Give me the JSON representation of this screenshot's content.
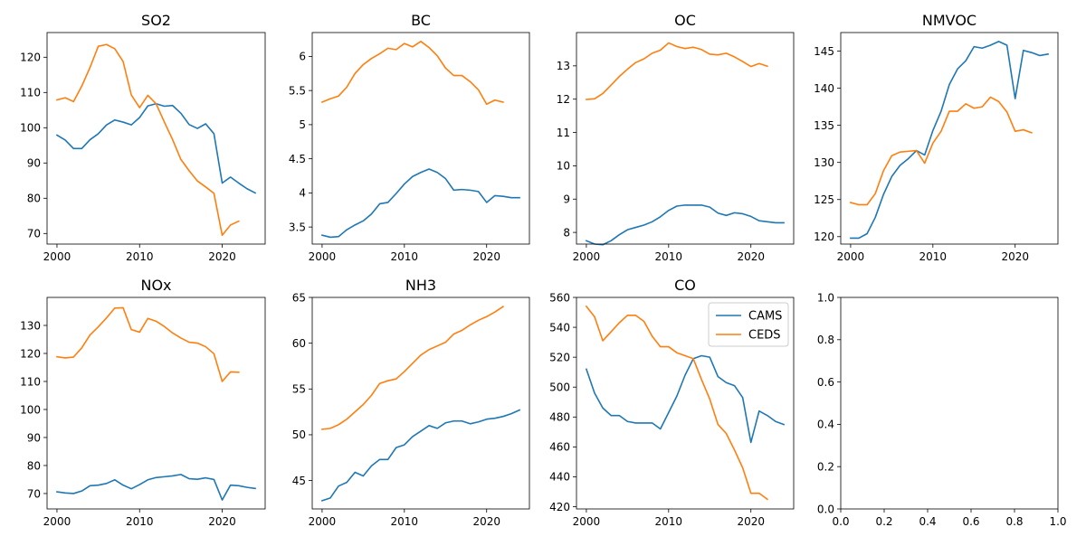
{
  "colors": {
    "cams": "#1f77b4",
    "ceds": "#ff7f0e"
  },
  "chart_data": [
    {
      "type": "line",
      "title": "SO2",
      "xlim": [
        1998.8,
        2025.2
      ],
      "ylim": [
        67,
        127
      ],
      "xticks": [
        2000,
        2010,
        2020
      ],
      "yticks": [
        70,
        80,
        90,
        100,
        110,
        120
      ],
      "series": [
        {
          "name": "CAMS",
          "x": [
            2000,
            2001,
            2002,
            2003,
            2004,
            2005,
            2006,
            2007,
            2008,
            2009,
            2010,
            2011,
            2012,
            2013,
            2014,
            2015,
            2016,
            2017,
            2018,
            2019,
            2020,
            2021,
            2022,
            2023,
            2024
          ],
          "values": [
            97.9,
            96.5,
            94.1,
            94.1,
            96.6,
            98.3,
            100.8,
            102.2,
            101.6,
            100.8,
            102.9,
            106.2,
            106.8,
            106.1,
            106.3,
            104.1,
            100.9,
            99.8,
            101.1,
            98.3,
            84.3,
            86.0,
            84.3,
            82.7,
            81.5
          ]
        },
        {
          "name": "CEDS",
          "x": [
            2000,
            2001,
            2002,
            2003,
            2004,
            2005,
            2006,
            2007,
            2008,
            2009,
            2010,
            2011,
            2012,
            2013,
            2014,
            2015,
            2016,
            2017,
            2018,
            2019,
            2020,
            2021,
            2022
          ],
          "values": [
            107.9,
            108.5,
            107.4,
            111.8,
            117.1,
            123.1,
            123.6,
            122.4,
            118.8,
            109.3,
            105.7,
            109.2,
            106.8,
            101.6,
            96.6,
            91.0,
            87.8,
            84.9,
            83.2,
            81.4,
            69.5,
            72.4,
            73.5
          ]
        }
      ]
    },
    {
      "type": "line",
      "title": "BC",
      "xlim": [
        1998.8,
        2025.2
      ],
      "ylim": [
        3.25,
        6.35
      ],
      "xticks": [
        2000,
        2010,
        2020
      ],
      "yticks": [
        3.5,
        4.0,
        4.5,
        5.0,
        5.5,
        6.0
      ],
      "series": [
        {
          "name": "CAMS",
          "x": [
            2000,
            2001,
            2002,
            2003,
            2004,
            2005,
            2006,
            2007,
            2008,
            2009,
            2010,
            2011,
            2012,
            2013,
            2014,
            2015,
            2016,
            2017,
            2018,
            2019,
            2020,
            2021,
            2022,
            2023,
            2024
          ],
          "values": [
            3.38,
            3.35,
            3.36,
            3.46,
            3.53,
            3.59,
            3.69,
            3.84,
            3.86,
            3.99,
            4.13,
            4.24,
            4.3,
            4.35,
            4.3,
            4.21,
            4.04,
            4.05,
            4.04,
            4.02,
            3.86,
            3.96,
            3.95,
            3.93,
            3.93
          ]
        },
        {
          "name": "CEDS",
          "x": [
            2000,
            2001,
            2002,
            2003,
            2004,
            2005,
            2006,
            2007,
            2008,
            2009,
            2010,
            2011,
            2012,
            2013,
            2014,
            2015,
            2016,
            2017,
            2018,
            2019,
            2020,
            2021,
            2022
          ],
          "values": [
            5.33,
            5.38,
            5.42,
            5.55,
            5.75,
            5.88,
            5.97,
            6.04,
            6.12,
            6.1,
            6.19,
            6.14,
            6.22,
            6.13,
            6.01,
            5.83,
            5.72,
            5.72,
            5.63,
            5.51,
            5.3,
            5.36,
            5.33
          ]
        }
      ]
    },
    {
      "type": "line",
      "title": "OC",
      "xlim": [
        1998.8,
        2025.2
      ],
      "ylim": [
        7.65,
        14.0
      ],
      "xticks": [
        2000,
        2010,
        2020
      ],
      "yticks": [
        8,
        9,
        10,
        11,
        12,
        13
      ],
      "series": [
        {
          "name": "CAMS",
          "x": [
            2000,
            2001,
            2002,
            2003,
            2004,
            2005,
            2006,
            2007,
            2008,
            2009,
            2010,
            2011,
            2012,
            2013,
            2014,
            2015,
            2016,
            2017,
            2018,
            2019,
            2020,
            2021,
            2022,
            2023,
            2024
          ],
          "values": [
            7.75,
            7.65,
            7.63,
            7.75,
            7.93,
            8.08,
            8.15,
            8.22,
            8.32,
            8.47,
            8.66,
            8.79,
            8.82,
            8.82,
            8.82,
            8.76,
            8.58,
            8.51,
            8.59,
            8.56,
            8.48,
            8.35,
            8.32,
            8.29,
            8.29
          ]
        },
        {
          "name": "CEDS",
          "x": [
            2000,
            2001,
            2002,
            2003,
            2004,
            2005,
            2006,
            2007,
            2008,
            2009,
            2010,
            2011,
            2012,
            2013,
            2014,
            2015,
            2016,
            2017,
            2018,
            2019,
            2020,
            2021,
            2022
          ],
          "values": [
            11.99,
            12.01,
            12.17,
            12.42,
            12.68,
            12.9,
            13.1,
            13.21,
            13.38,
            13.47,
            13.69,
            13.58,
            13.52,
            13.56,
            13.49,
            13.35,
            13.33,
            13.38,
            13.27,
            13.13,
            12.98,
            13.07,
            12.99
          ]
        }
      ]
    },
    {
      "type": "line",
      "title": "NMVOC",
      "xlim": [
        1998.8,
        2025.2
      ],
      "ylim": [
        119,
        147.5
      ],
      "xticks": [
        2000,
        2010,
        2020
      ],
      "yticks": [
        120,
        125,
        130,
        135,
        140,
        145
      ],
      "series": [
        {
          "name": "CAMS",
          "x": [
            2000,
            2001,
            2002,
            2003,
            2004,
            2005,
            2006,
            2007,
            2008,
            2009,
            2010,
            2011,
            2012,
            2013,
            2014,
            2015,
            2016,
            2017,
            2018,
            2019,
            2020,
            2021,
            2022,
            2023,
            2024
          ],
          "values": [
            119.8,
            119.8,
            120.4,
            122.6,
            125.7,
            128.1,
            129.6,
            130.5,
            131.6,
            131.0,
            134.3,
            136.9,
            140.5,
            142.6,
            143.7,
            145.6,
            145.4,
            145.8,
            146.3,
            145.8,
            138.6,
            145.1,
            144.8,
            144.4,
            144.6
          ]
        },
        {
          "name": "CEDS",
          "x": [
            2000,
            2001,
            2002,
            2003,
            2004,
            2005,
            2006,
            2007,
            2008,
            2009,
            2010,
            2011,
            2012,
            2013,
            2014,
            2015,
            2016,
            2017,
            2018,
            2019,
            2020,
            2021,
            2022
          ],
          "values": [
            124.6,
            124.3,
            124.3,
            125.8,
            128.9,
            130.9,
            131.4,
            131.5,
            131.6,
            129.9,
            132.6,
            134.2,
            136.9,
            136.9,
            137.9,
            137.3,
            137.5,
            138.8,
            138.2,
            136.8,
            134.2,
            134.4,
            134.0
          ]
        }
      ]
    },
    {
      "type": "line",
      "title": "NOx",
      "xlim": [
        1998.8,
        2025.2
      ],
      "ylim": [
        64.5,
        140
      ],
      "xticks": [
        2000,
        2010,
        2020
      ],
      "yticks": [
        70,
        80,
        90,
        100,
        110,
        120,
        130
      ],
      "series": [
        {
          "name": "CAMS",
          "x": [
            2000,
            2001,
            2002,
            2003,
            2004,
            2005,
            2006,
            2007,
            2008,
            2009,
            2010,
            2011,
            2012,
            2013,
            2014,
            2015,
            2016,
            2017,
            2018,
            2019,
            2020,
            2021,
            2022,
            2023,
            2024
          ],
          "values": [
            70.6,
            70.2,
            70.0,
            70.9,
            72.8,
            73.0,
            73.6,
            74.9,
            73.0,
            71.7,
            73.2,
            74.9,
            75.7,
            76.0,
            76.3,
            76.8,
            75.3,
            75.1,
            75.6,
            75.0,
            67.7,
            73.0,
            72.8,
            72.2,
            71.8
          ]
        },
        {
          "name": "CEDS",
          "x": [
            2000,
            2001,
            2002,
            2003,
            2004,
            2005,
            2006,
            2007,
            2008,
            2009,
            2010,
            2011,
            2012,
            2013,
            2014,
            2015,
            2016,
            2017,
            2018,
            2019,
            2020,
            2021,
            2022
          ],
          "values": [
            118.8,
            118.4,
            118.7,
            122.0,
            126.6,
            129.5,
            132.7,
            136.2,
            136.3,
            128.5,
            127.6,
            132.5,
            131.5,
            129.6,
            127.3,
            125.5,
            124.0,
            123.7,
            122.4,
            119.9,
            110.0,
            113.4,
            113.3
          ]
        }
      ]
    },
    {
      "type": "line",
      "title": "NH3",
      "xlim": [
        1998.8,
        2025.2
      ],
      "ylim": [
        41.9,
        65.0
      ],
      "xticks": [
        2000,
        2010,
        2020
      ],
      "yticks": [
        45,
        50,
        55,
        60,
        65
      ],
      "series": [
        {
          "name": "CAMS",
          "x": [
            2000,
            2001,
            2002,
            2003,
            2004,
            2005,
            2006,
            2007,
            2008,
            2009,
            2010,
            2011,
            2012,
            2013,
            2014,
            2015,
            2016,
            2017,
            2018,
            2019,
            2020,
            2021,
            2022,
            2023,
            2024
          ],
          "values": [
            42.8,
            43.1,
            44.4,
            44.8,
            45.9,
            45.5,
            46.6,
            47.3,
            47.3,
            48.6,
            48.9,
            49.8,
            50.4,
            51.0,
            50.7,
            51.3,
            51.5,
            51.5,
            51.2,
            51.4,
            51.7,
            51.8,
            52.0,
            52.3,
            52.7
          ]
        },
        {
          "name": "CEDS",
          "x": [
            2000,
            2001,
            2002,
            2003,
            2004,
            2005,
            2006,
            2007,
            2008,
            2009,
            2010,
            2011,
            2012,
            2013,
            2014,
            2015,
            2016,
            2017,
            2018,
            2019,
            2020,
            2021,
            2022
          ],
          "values": [
            50.6,
            50.7,
            51.1,
            51.7,
            52.5,
            53.3,
            54.3,
            55.6,
            55.9,
            56.1,
            56.9,
            57.8,
            58.7,
            59.3,
            59.7,
            60.1,
            61.0,
            61.4,
            62.0,
            62.5,
            62.9,
            63.4,
            64.0
          ]
        }
      ]
    },
    {
      "type": "line",
      "title": "CO",
      "xlim": [
        1998.8,
        2025.2
      ],
      "ylim": [
        418.5,
        560
      ],
      "xticks": [
        2000,
        2010,
        2020
      ],
      "yticks": [
        420,
        440,
        460,
        480,
        500,
        520,
        540,
        560
      ],
      "legend": {
        "position": "top-right",
        "entries": [
          "CAMS",
          "CEDS"
        ]
      },
      "series": [
        {
          "name": "CAMS",
          "x": [
            2000,
            2001,
            2002,
            2003,
            2004,
            2005,
            2006,
            2007,
            2008,
            2009,
            2010,
            2011,
            2012,
            2013,
            2014,
            2015,
            2016,
            2017,
            2018,
            2019,
            2020,
            2021,
            2022,
            2023,
            2024
          ],
          "values": [
            512,
            496,
            486,
            481,
            481,
            477,
            476,
            476,
            476,
            472,
            483,
            494,
            508,
            519,
            521,
            520,
            507,
            503,
            501,
            493,
            463,
            484,
            481,
            477,
            475
          ]
        },
        {
          "name": "CEDS",
          "x": [
            2000,
            2001,
            2002,
            2003,
            2004,
            2005,
            2006,
            2007,
            2008,
            2009,
            2010,
            2011,
            2012,
            2013,
            2014,
            2015,
            2016,
            2017,
            2018,
            2019,
            2020,
            2021,
            2022
          ],
          "values": [
            554,
            547,
            531,
            537,
            543,
            548,
            548,
            544,
            534,
            527,
            527,
            523,
            521,
            519,
            505,
            492,
            475,
            469,
            458,
            446,
            429,
            429,
            425
          ]
        }
      ]
    },
    {
      "type": "line",
      "title": "",
      "xlim": [
        0,
        1
      ],
      "ylim": [
        0,
        1
      ],
      "xticks": [
        0.0,
        0.2,
        0.4,
        0.6,
        0.8,
        1.0
      ],
      "yticks": [
        0.0,
        0.2,
        0.4,
        0.6,
        0.8,
        1.0
      ],
      "tick_decimals": 1,
      "series": []
    }
  ]
}
